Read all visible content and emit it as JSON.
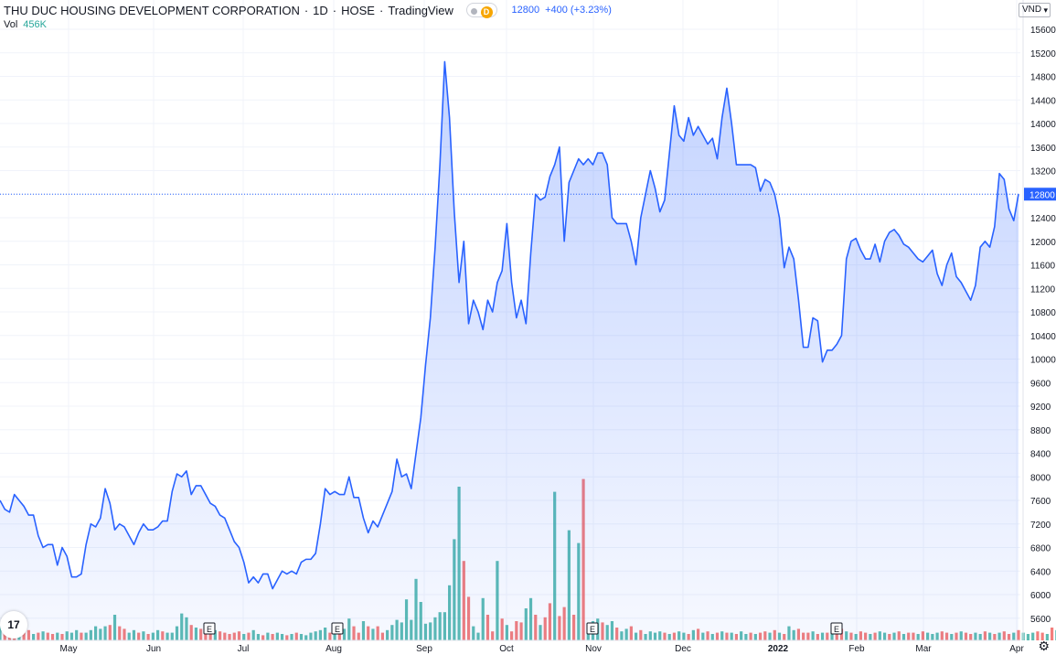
{
  "header": {
    "symbol_name": "THU DUC HOUSING DEVELOPMENT CORPORATION",
    "interval": "1D",
    "exchange": "HOSE",
    "source": "TradingView",
    "badge": "D",
    "price": "12800",
    "change": "+400 (+3.23%)"
  },
  "volume": {
    "label": "Vol",
    "value": "456K"
  },
  "currency": "VND",
  "last_price_label": "12800",
  "logo_text": "17",
  "settings_icon": "gear-icon",
  "colors": {
    "line": "#2962ff",
    "fill": "#2962ff",
    "vol_up": "#26a69a",
    "vol_down": "#ef5350",
    "grid": "#f0f3fa"
  },
  "chart_data": {
    "type": "area",
    "price_axis": {
      "ylim": [
        5300,
        15800
      ],
      "ticks": [
        5600,
        6000,
        6400,
        6800,
        7200,
        7600,
        8000,
        8400,
        8800,
        9200,
        9600,
        10000,
        10400,
        10800,
        11200,
        11600,
        12000,
        12400,
        12800,
        13200,
        13600,
        14000,
        14400,
        14800,
        15200,
        15600
      ]
    },
    "time_ticks": [
      "May",
      "Jun",
      "Jul",
      "Aug",
      "Sep",
      "Oct",
      "Nov",
      "Dec",
      "2022",
      "Feb",
      "Mar",
      "Apr"
    ],
    "event_markers": [
      "E",
      "E",
      "E",
      "E"
    ],
    "last_price": 12800,
    "price_series": [
      7600,
      7450,
      7400,
      7700,
      7600,
      7500,
      7350,
      7350,
      7000,
      6800,
      6850,
      6850,
      6500,
      6800,
      6650,
      6300,
      6300,
      6350,
      6850,
      7200,
      7150,
      7300,
      7800,
      7550,
      7100,
      7200,
      7150,
      7000,
      6850,
      7050,
      7200,
      7100,
      7100,
      7150,
      7250,
      7250,
      7750,
      8050,
      8000,
      8100,
      7700,
      7850,
      7850,
      7700,
      7550,
      7500,
      7350,
      7300,
      7100,
      6900,
      6800,
      6550,
      6200,
      6300,
      6200,
      6350,
      6350,
      6100,
      6250,
      6400,
      6350,
      6400,
      6350,
      6550,
      6600,
      6600,
      6700,
      7200,
      7800,
      7700,
      7750,
      7700,
      7700,
      8000,
      7650,
      7650,
      7300,
      7050,
      7250,
      7150,
      7350,
      7550,
      7750,
      8300,
      8000,
      8050,
      7800,
      8400,
      9000,
      9900,
      10700,
      11900,
      13300,
      15050,
      14100,
      12500,
      11300,
      12000,
      10600,
      11000,
      10800,
      10500,
      11000,
      10800,
      11300,
      11500,
      12300,
      11300,
      10700,
      11000,
      10600,
      11800,
      12800,
      12700,
      12750,
      13100,
      13300,
      13600,
      12000,
      13000,
      13200,
      13400,
      13300,
      13400,
      13300,
      13500,
      13500,
      13300,
      12400,
      12300,
      12300,
      12300,
      12000,
      11600,
      12400,
      12800,
      13200,
      12900,
      12500,
      12700,
      13500,
      14300,
      13800,
      13700,
      14100,
      13800,
      13950,
      13800,
      13650,
      13750,
      13400,
      14100,
      14600,
      14000,
      13300,
      13300,
      13300,
      13300,
      13250,
      12850,
      13050,
      13000,
      12800,
      12400,
      11550,
      11900,
      11700,
      11000,
      10200,
      10200,
      10700,
      10650,
      9950,
      10150,
      10150,
      10250,
      10400,
      11700,
      12000,
      12050,
      11850,
      11700,
      11700,
      11950,
      11650,
      12000,
      12150,
      12200,
      12100,
      11950,
      11900,
      11800,
      11700,
      11650,
      11750,
      11850,
      11450,
      11250,
      11600,
      11800,
      11400,
      11300,
      11150,
      11000,
      11250,
      11900,
      12000,
      11900,
      12250,
      13150,
      13050,
      12550,
      12350,
      12800
    ],
    "volume_series": [
      0.55,
      0.5,
      0.45,
      0.4,
      0.35,
      0.3,
      0.4,
      0.25,
      0.3,
      0.35,
      0.3,
      0.25,
      0.3,
      0.25,
      0.35,
      0.3,
      0.4,
      0.3,
      0.3,
      0.4,
      0.55,
      0.45,
      0.55,
      0.6,
      1.0,
      0.55,
      0.45,
      0.3,
      0.4,
      0.3,
      0.35,
      0.25,
      0.3,
      0.4,
      0.35,
      0.3,
      0.3,
      0.55,
      1.05,
      0.9,
      0.6,
      0.5,
      0.45,
      0.35,
      0.3,
      0.4,
      0.35,
      0.3,
      0.25,
      0.3,
      0.35,
      0.25,
      0.3,
      0.4,
      0.25,
      0.2,
      0.3,
      0.25,
      0.3,
      0.25,
      0.2,
      0.25,
      0.3,
      0.25,
      0.2,
      0.3,
      0.35,
      0.4,
      0.5,
      0.3,
      0.55,
      0.3,
      0.45,
      0.85,
      0.55,
      0.3,
      0.75,
      0.55,
      0.45,
      0.55,
      0.3,
      0.4,
      0.6,
      0.8,
      0.7,
      1.6,
      0.8,
      2.4,
      1.5,
      0.65,
      0.7,
      0.9,
      1.1,
      1.1,
      2.15,
      3.95,
      6.0,
      3.1,
      1.7,
      0.55,
      0.3,
      1.65,
      1.0,
      0.35,
      3.1,
      0.85,
      0.6,
      0.35,
      0.75,
      0.7,
      1.25,
      1.65,
      1.0,
      0.6,
      0.9,
      1.45,
      5.8,
      0.95,
      1.3,
      4.3,
      1.0,
      3.8,
      6.3,
      0.6,
      0.75,
      0.85,
      0.7,
      0.6,
      0.75,
      0.5,
      0.35,
      0.45,
      0.55,
      0.3,
      0.4,
      0.25,
      0.35,
      0.3,
      0.35,
      0.3,
      0.25,
      0.3,
      0.35,
      0.3,
      0.25,
      0.4,
      0.45,
      0.3,
      0.35,
      0.25,
      0.3,
      0.35,
      0.3,
      0.3,
      0.25,
      0.35,
      0.25,
      0.3,
      0.25,
      0.3,
      0.35,
      0.3,
      0.4,
      0.3,
      0.25,
      0.55,
      0.4,
      0.45,
      0.3,
      0.3,
      0.35,
      0.25,
      0.3,
      0.3,
      0.35,
      0.25,
      0.45,
      0.35,
      0.3,
      0.25,
      0.35,
      0.3,
      0.25,
      0.3,
      0.35,
      0.3,
      0.25,
      0.3,
      0.35,
      0.25,
      0.3,
      0.3,
      0.25,
      0.35,
      0.3,
      0.25,
      0.3,
      0.35,
      0.3,
      0.25,
      0.3,
      0.35,
      0.3,
      0.25,
      0.3,
      0.25,
      0.35,
      0.3,
      0.25,
      0.3,
      0.35,
      0.25,
      0.3,
      0.4,
      0.3,
      0.25,
      0.3,
      0.35,
      0.3,
      0.25,
      0.5,
      0.4,
      0.35,
      0.3,
      0.25
    ],
    "volume_up": [
      1,
      0,
      0,
      0,
      1,
      0,
      0,
      1,
      0,
      1,
      0,
      0,
      1,
      0,
      1,
      1,
      1,
      0,
      1,
      1,
      1,
      1,
      1,
      0,
      1,
      0,
      0,
      1,
      1,
      0,
      1,
      0,
      1,
      1,
      0,
      1,
      1,
      1,
      1,
      1,
      0,
      1,
      0,
      0,
      0,
      1,
      0,
      0,
      0,
      0,
      0,
      1,
      0,
      1,
      1,
      0,
      1,
      0,
      1,
      1,
      0,
      1,
      0,
      1,
      1,
      1,
      1,
      1,
      1,
      0,
      1,
      0,
      1,
      1,
      0,
      0,
      1,
      0,
      1,
      0,
      0,
      1,
      1,
      1,
      1,
      1,
      1,
      1,
      1,
      1,
      1,
      1,
      1,
      1,
      1,
      1,
      1,
      0,
      0,
      1,
      1,
      1,
      0,
      0,
      1,
      0,
      1,
      0,
      0,
      0,
      1,
      1,
      0,
      1,
      0,
      0,
      1,
      0,
      0,
      1,
      0,
      1,
      0,
      1,
      1,
      1,
      0,
      1,
      1,
      0,
      1,
      1,
      0,
      1,
      0,
      1,
      1,
      1,
      1,
      0,
      1,
      0,
      1,
      1,
      0,
      1,
      0,
      1,
      0,
      1,
      0,
      1,
      0,
      1,
      0,
      1,
      1,
      0,
      1,
      0,
      0,
      1,
      0,
      1,
      0,
      1,
      1,
      0,
      0,
      0,
      1,
      0,
      1,
      0,
      1,
      0,
      0,
      1,
      0,
      1,
      0,
      0,
      1,
      0,
      1,
      1,
      0,
      1,
      0,
      1,
      0,
      0,
      1,
      0,
      1,
      1,
      1,
      0,
      0,
      1,
      0,
      1,
      0,
      0,
      1,
      1,
      0,
      1,
      0,
      1,
      0,
      0,
      1,
      0,
      1,
      1,
      1,
      0,
      0,
      1,
      0,
      1,
      0,
      1,
      1,
      1,
      1,
      0,
      1
    ]
  }
}
